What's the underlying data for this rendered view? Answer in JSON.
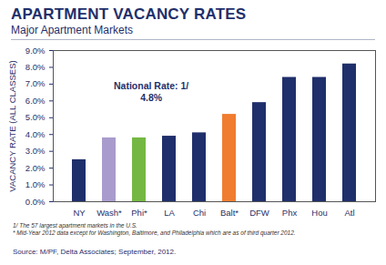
{
  "chart_data": {
    "type": "bar",
    "title": "APARTMENT VACANCY RATES",
    "subtitle": "Major Apartment Markets",
    "y_label": "VACANCY RATE (ALL CLASSES)",
    "categories": [
      "NY",
      "Wash*",
      "Phi*",
      "LA",
      "Chi",
      "Balt*",
      "DFW",
      "Phx",
      "Hou",
      "Atl"
    ],
    "values": [
      2.5,
      3.8,
      3.8,
      3.9,
      4.1,
      5.2,
      5.9,
      7.4,
      7.4,
      8.2
    ],
    "colors": [
      "#1f2f6b",
      "#a99bcc",
      "#74b843",
      "#1f2f6b",
      "#1f2f6b",
      "#f07c30",
      "#1f2f6b",
      "#1f2f6b",
      "#1f2f6b",
      "#1f2f6b"
    ],
    "ylim": [
      0,
      9
    ],
    "yticks": [
      {
        "value": 0,
        "label": "0.0%"
      },
      {
        "value": 1,
        "label": "1.0%"
      },
      {
        "value": 2,
        "label": "2.0%"
      },
      {
        "value": 3,
        "label": "3.0%"
      },
      {
        "value": 4,
        "label": "4.0%"
      },
      {
        "value": 5,
        "label": "5.0%"
      },
      {
        "value": 6,
        "label": "6.0%"
      },
      {
        "value": 7,
        "label": "7.0%"
      },
      {
        "value": 8,
        "label": "8.0%"
      },
      {
        "value": 9,
        "label": "9.0%"
      }
    ],
    "grid": false,
    "annotations": [
      "National Rate: 1/",
      "4.8%"
    ],
    "notes": [
      "1/ The 57 largest apartment markets in the U.S.",
      "* Mid-Year 2012 data except for Washington, Baltimore, and Philadelphia which are as of third quarter 2012."
    ],
    "source": "Source: M/PF, Delta Associates; September, 2012."
  }
}
